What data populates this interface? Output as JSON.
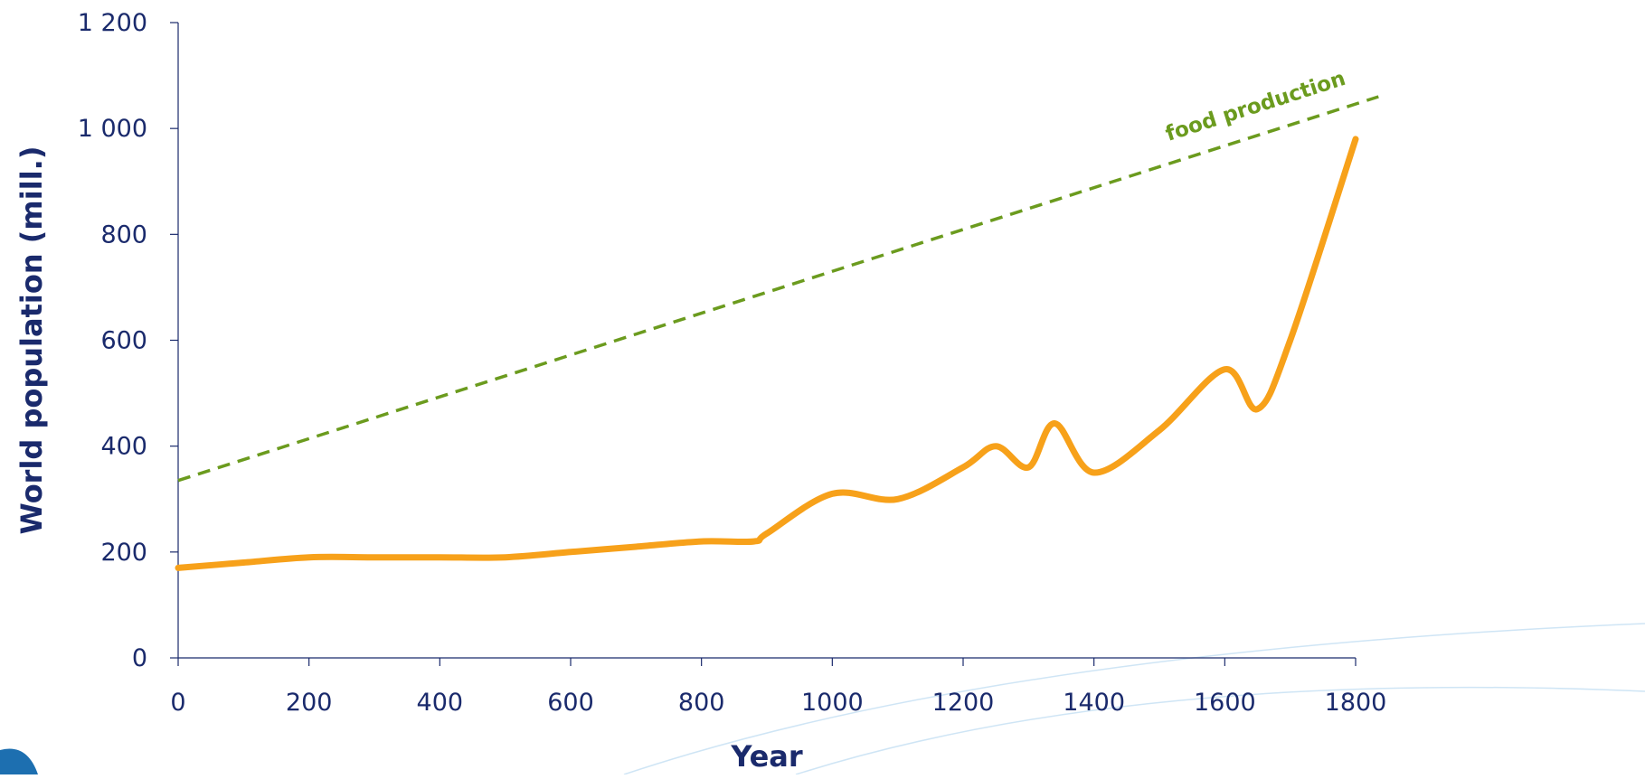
{
  "chart_data": {
    "type": "line",
    "xlabel": "Year",
    "ylabel": "World population (mill.)",
    "xlim": [
      0,
      1800
    ],
    "ylim": [
      0,
      1200
    ],
    "grid": false,
    "x_ticks": [
      {
        "value": 0,
        "label": "0"
      },
      {
        "value": 200,
        "label": "200"
      },
      {
        "value": 400,
        "label": "400"
      },
      {
        "value": 600,
        "label": "600"
      },
      {
        "value": 800,
        "label": "800"
      },
      {
        "value": 1000,
        "label": "1000"
      },
      {
        "value": 1200,
        "label": "1200"
      },
      {
        "value": 1400,
        "label": "1400"
      },
      {
        "value": 1600,
        "label": "1600"
      },
      {
        "value": 1800,
        "label": "1800"
      }
    ],
    "y_ticks": [
      {
        "value": 0,
        "label": "0"
      },
      {
        "value": 200,
        "label": "200"
      },
      {
        "value": 400,
        "label": "400"
      },
      {
        "value": 600,
        "label": "600"
      },
      {
        "value": 800,
        "label": "800"
      },
      {
        "value": 1000,
        "label": "1 000"
      },
      {
        "value": 1200,
        "label": "1 200"
      }
    ],
    "series": [
      {
        "color": "#f7a11a",
        "style": "solid",
        "x": [
          0,
          100,
          200,
          300,
          400,
          500,
          600,
          700,
          800,
          880,
          900,
          1000,
          1100,
          1200,
          1250,
          1300,
          1340,
          1400,
          1500,
          1600,
          1650,
          1700,
          1800
        ],
        "y": [
          170,
          180,
          190,
          190,
          190,
          190,
          200,
          210,
          220,
          220,
          235,
          310,
          300,
          360,
          400,
          360,
          443,
          350,
          430,
          545,
          470,
          600,
          980
        ]
      },
      {
        "color": "#6b9b1e",
        "style": "dashed",
        "x": [
          0,
          1835
        ],
        "y": [
          335,
          1060
        ]
      }
    ],
    "annotations": [
      {
        "text": "food production",
        "color": "#6b9b1e",
        "x": 1650,
        "y": 1030
      }
    ]
  }
}
